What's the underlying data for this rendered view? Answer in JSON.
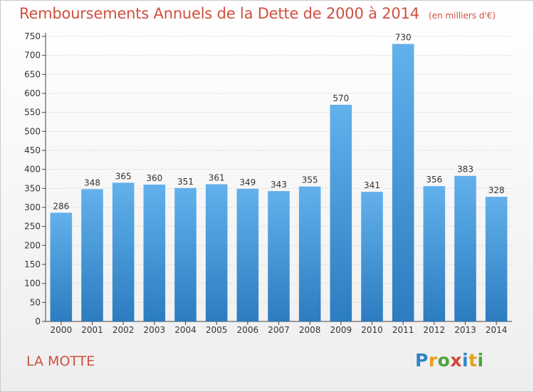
{
  "header": {
    "title": "Remboursements Annuels de la Dette de 2000 à 2014",
    "unit": "(en milliers d'€)"
  },
  "footer": {
    "commune": "LA MOTTE"
  },
  "logo": {
    "text": "Proxiti",
    "letters": [
      {
        "char": "P",
        "color": "#2f86c9"
      },
      {
        "char": "r",
        "color": "#e6a01e"
      },
      {
        "char": "o",
        "color": "#4aa43c"
      },
      {
        "char": "x",
        "color": "#d2443a"
      },
      {
        "char": "i",
        "color": "#2f86c9"
      },
      {
        "char": "t",
        "color": "#e6a01e"
      },
      {
        "char": "i",
        "color": "#4aa43c"
      }
    ]
  },
  "colors": {
    "bar_top": "#62b1ec",
    "bar_bottom": "#2c7cc0",
    "title": "#d0503f",
    "grid": "#d6d6d6",
    "axis": "#444444"
  },
  "chart_data": {
    "type": "bar",
    "categories": [
      "2000",
      "2001",
      "2002",
      "2003",
      "2004",
      "2005",
      "2006",
      "2007",
      "2008",
      "2009",
      "2010",
      "2011",
      "2012",
      "2013",
      "2014"
    ],
    "values": [
      286,
      348,
      365,
      360,
      351,
      361,
      349,
      343,
      355,
      570,
      341,
      730,
      356,
      383,
      328
    ],
    "title": "Remboursements Annuels de la Dette de 2000 à 2014",
    "xlabel": "",
    "ylabel": "",
    "ylim": [
      0,
      750
    ],
    "yticks": [
      0,
      50,
      100,
      150,
      200,
      250,
      300,
      350,
      400,
      450,
      500,
      550,
      600,
      650,
      700,
      750
    ],
    "grid": true,
    "data_labels": true,
    "legend": "none"
  }
}
